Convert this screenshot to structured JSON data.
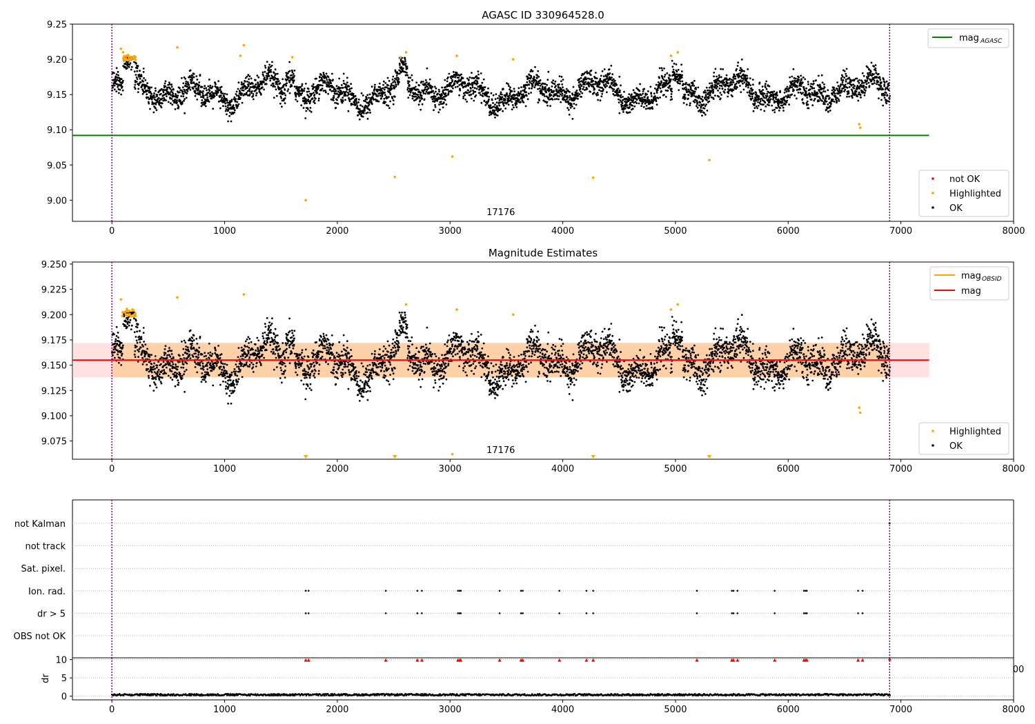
{
  "chart_data": [
    {
      "type": "scatter",
      "title": "AGASC ID 330964528.0",
      "xlim": [
        -350,
        8000
      ],
      "ylim": [
        8.97,
        9.25
      ],
      "xticks": [
        0,
        1000,
        2000,
        3000,
        4000,
        5000,
        6000,
        7000,
        8000
      ],
      "yticks": [
        "9.00",
        "9.05",
        "9.10",
        "9.15",
        "9.20",
        "9.25"
      ],
      "center_label": {
        "text": "17176",
        "x": 3450
      },
      "vlines_x": [
        0,
        6900
      ],
      "lines": [
        {
          "name": "mag_AGASC",
          "label": "mag",
          "sub": "AGASC",
          "y": 9.092,
          "x_range": [
            -350,
            7250
          ],
          "color": "#008000"
        }
      ],
      "series": [
        {
          "name": "not OK",
          "color": "#ff0000",
          "points": []
        },
        {
          "name": "Highlighted",
          "color": "#ffa500",
          "points": [
            [
              1720,
              9.0
            ],
            [
              2510,
              9.033
            ],
            [
              3020,
              9.062
            ],
            [
              4270,
              9.032
            ],
            [
              5300,
              9.057
            ],
            [
              6640,
              9.103
            ],
            [
              6630,
              9.108
            ],
            [
              80,
              9.215
            ],
            [
              100,
              9.21
            ],
            [
              130,
              9.205
            ],
            [
              170,
              9.2
            ],
            [
              580,
              9.217
            ],
            [
              1170,
              9.22
            ],
            [
              1140,
              9.205
            ],
            [
              1600,
              9.203
            ],
            [
              2560,
              9.203
            ],
            [
              2610,
              9.21
            ],
            [
              3060,
              9.205
            ],
            [
              3560,
              9.2
            ],
            [
              4960,
              9.205
            ],
            [
              5020,
              9.21
            ]
          ]
        },
        {
          "name": "OK",
          "color": "#000000",
          "description": "dense band of ~4000 points from x 0 to 6900, y ~9.11 to 9.20"
        }
      ],
      "legend": {
        "placement": "lower-right",
        "upper_right": [
          "mag_AGASC"
        ],
        "lower_right": [
          "not OK",
          "Highlighted",
          "OK"
        ]
      }
    },
    {
      "type": "scatter",
      "title": "Magnitude Estimates",
      "xlim": [
        -350,
        8000
      ],
      "ylim": [
        9.057,
        9.252
      ],
      "xticks": [
        0,
        1000,
        2000,
        3000,
        4000,
        5000,
        6000,
        7000,
        8000
      ],
      "yticks": [
        "9.075",
        "9.100",
        "9.125",
        "9.150",
        "9.175",
        "9.200",
        "9.225",
        "9.250"
      ],
      "center_label": {
        "text": "17176",
        "x": 3450
      },
      "vlines_x": [
        0,
        6900
      ],
      "lines": [
        {
          "name": "mag_OBSID",
          "label": "mag",
          "sub": "OBSID",
          "y": 9.155,
          "color": "#ffa500"
        },
        {
          "name": "mag",
          "label": "mag",
          "y": 9.155,
          "x_range": [
            -350,
            7250
          ],
          "color": "#ff0000"
        }
      ],
      "band": {
        "y_range": [
          9.138,
          9.172
        ],
        "x_range": [
          -350,
          7250
        ]
      },
      "off_scale_markers_x": [
        1720,
        2510,
        4270,
        5300
      ],
      "series": [
        {
          "name": "Highlighted",
          "color": "#ffa500",
          "points": [
            [
              3020,
              9.062
            ],
            [
              6640,
              9.103
            ],
            [
              6630,
              9.108
            ],
            [
              80,
              9.215
            ],
            [
              580,
              9.217
            ],
            [
              1170,
              9.22
            ],
            [
              2610,
              9.21
            ],
            [
              3060,
              9.205
            ],
            [
              5020,
              9.21
            ],
            [
              4960,
              9.205
            ],
            [
              3560,
              9.2
            ]
          ]
        },
        {
          "name": "OK",
          "color": "#000000",
          "description": "dense band of points from x 0 to 6900, y ~9.11 to 9.20"
        }
      ],
      "legend": {
        "placement": "lower-right",
        "upper_right": [
          "mag_OBSID",
          "mag"
        ],
        "lower_right": [
          "Highlighted",
          "OK"
        ]
      }
    },
    {
      "type": "scatter",
      "title": "",
      "xlim": [
        -350,
        8000
      ],
      "categories": [
        "not Kalman",
        "not track",
        "Sat. pixel.",
        "Ion. rad.",
        "dr > 5",
        "OBS not OK"
      ],
      "vlines_x": [
        0,
        6900
      ],
      "flag_events_x": [
        1720,
        1745,
        2430,
        2710,
        2750,
        3070,
        3085,
        3095,
        3440,
        3630,
        3645,
        3970,
        4210,
        4270,
        5190,
        5500,
        5515,
        5550,
        5880,
        6140,
        6155,
        6165,
        6620,
        6660
      ],
      "flag_rows": [
        "Ion. rad.",
        "dr > 5"
      ],
      "extra_marks": [
        {
          "row": "not Kalman",
          "x": 6900
        }
      ]
    },
    {
      "type": "scatter",
      "title": "",
      "ylabel": "dr",
      "xlim": [
        -350,
        8000
      ],
      "ylim": [
        -1,
        10.5
      ],
      "xticks": [
        0,
        1000,
        2000,
        3000,
        4000,
        5000,
        6000,
        7000,
        8000
      ],
      "yticks": [
        0,
        5,
        10
      ],
      "clipped_tick_label": "00",
      "clipped_markers_y": 10,
      "clipped_markers_color": "#ff0000",
      "series": [
        {
          "name": "dr",
          "color": "#000000",
          "description": "points near 0 (~0 to 0.8) from x 0 to 6900"
        }
      ]
    }
  ]
}
